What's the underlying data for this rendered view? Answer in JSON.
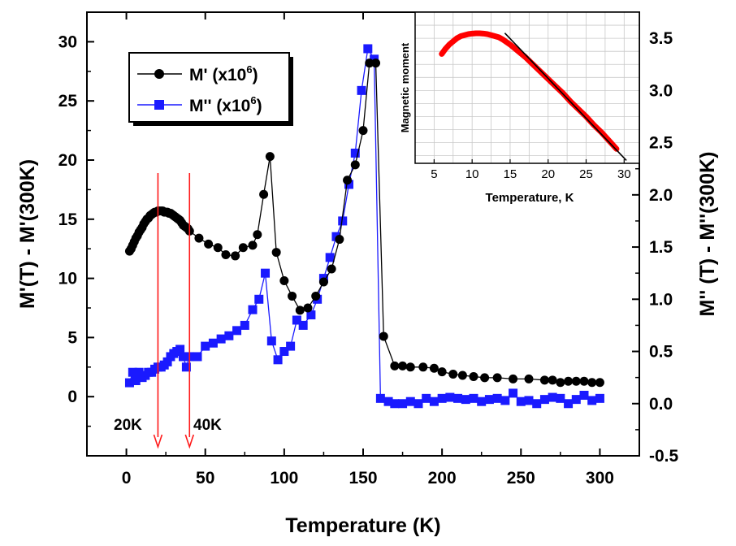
{
  "chart_data": {
    "type": "scatter",
    "xlabel": "Temperature (K)",
    "ylabel_left": "M'(T) - M'(300K)",
    "ylabel_right": "M'' (T) - M''(300K)",
    "xlim": [
      -25,
      325
    ],
    "ylim_left": [
      -5,
      32.5
    ],
    "ylim_right": [
      -0.5,
      3.75
    ],
    "x_ticks": [
      0,
      50,
      100,
      150,
      200,
      250,
      300
    ],
    "y_ticks_left": [
      0,
      5,
      10,
      15,
      20,
      25,
      30
    ],
    "y_ticks_right": [
      -0.5,
      0.0,
      0.5,
      1.0,
      1.5,
      2.0,
      2.5,
      3.0,
      3.5
    ],
    "legend": [
      {
        "label": "M' (x10",
        "sup": "6",
        "tail": ")",
        "color": "#000000",
        "marker": "circle"
      },
      {
        "label": "M'' (x10",
        "sup": "6",
        "tail": ")",
        "color": "#1a1aff",
        "marker": "square"
      }
    ],
    "annotations": [
      {
        "text": "20K",
        "x": 20
      },
      {
        "text": "40K",
        "x": 40
      }
    ],
    "arrow_color": "#ff1a1a",
    "series": [
      {
        "name": "M'",
        "axis": "left",
        "color": "#000000",
        "x": [
          2,
          3,
          4,
          5,
          6,
          7,
          8,
          9,
          10,
          11,
          12,
          13,
          14,
          15,
          16,
          17,
          18,
          19,
          20,
          21,
          22,
          23,
          24,
          25,
          26,
          27,
          28,
          29,
          30,
          31,
          32,
          33,
          34,
          35,
          36,
          37,
          38,
          39,
          40,
          46,
          52,
          58,
          63,
          69,
          74,
          80,
          83,
          87,
          91,
          95,
          100,
          105,
          110,
          115,
          120,
          125,
          130,
          135,
          140,
          145,
          150,
          154,
          158,
          163,
          170,
          175,
          180,
          188,
          195,
          200,
          207,
          213,
          220,
          227,
          235,
          245,
          255,
          265,
          270,
          275,
          280,
          285,
          290,
          295,
          300
        ],
        "y": [
          12.3,
          12.5,
          12.8,
          13.1,
          13.4,
          13.6,
          13.9,
          14.1,
          14.3,
          14.6,
          14.8,
          15.0,
          15.1,
          15.3,
          15.4,
          15.5,
          15.6,
          15.6,
          15.7,
          15.7,
          15.7,
          15.7,
          15.6,
          15.6,
          15.6,
          15.5,
          15.5,
          15.4,
          15.3,
          15.2,
          15.1,
          15.0,
          14.9,
          14.7,
          14.5,
          14.4,
          14.3,
          14.2,
          14.0,
          13.4,
          12.9,
          12.6,
          12.0,
          11.9,
          12.6,
          12.8,
          13.7,
          17.1,
          20.3,
          12.2,
          9.8,
          8.5,
          7.3,
          7.5,
          8.5,
          9.7,
          10.8,
          13.3,
          18.3,
          19.6,
          22.5,
          28.2,
          28.2,
          5.1,
          2.6,
          2.6,
          2.5,
          2.5,
          2.4,
          2.1,
          1.9,
          1.8,
          1.7,
          1.6,
          1.6,
          1.5,
          1.5,
          1.4,
          1.4,
          1.2,
          1.3,
          1.3,
          1.3,
          1.2,
          1.2
        ]
      },
      {
        "name": "M''",
        "axis": "right",
        "color": "#1a1aff",
        "x": [
          2,
          4,
          6,
          8,
          10,
          12,
          14,
          16,
          18,
          20,
          22,
          24,
          26,
          28,
          30,
          32,
          34,
          36,
          38,
          40,
          45,
          50,
          55,
          60,
          65,
          70,
          75,
          80,
          84,
          88,
          92,
          96,
          100,
          104,
          108,
          112,
          117,
          121,
          125,
          129,
          133,
          137,
          141,
          145,
          149,
          153,
          157,
          161,
          166,
          170,
          175,
          180,
          185,
          190,
          195,
          200,
          205,
          210,
          215,
          220,
          225,
          230,
          235,
          240,
          245,
          250,
          255,
          260,
          265,
          270,
          275,
          280,
          285,
          290,
          295,
          300
        ],
        "y": [
          0.2,
          0.3,
          0.22,
          0.3,
          0.25,
          0.27,
          0.3,
          0.3,
          0.33,
          0.35,
          0.35,
          0.37,
          0.4,
          0.45,
          0.48,
          0.5,
          0.52,
          0.45,
          0.35,
          0.45,
          0.45,
          0.55,
          0.58,
          0.62,
          0.65,
          0.7,
          0.75,
          0.9,
          1.0,
          1.25,
          0.6,
          0.42,
          0.5,
          0.55,
          0.8,
          0.75,
          0.85,
          1.0,
          1.2,
          1.4,
          1.6,
          1.75,
          2.1,
          2.4,
          3.0,
          3.4,
          3.3,
          0.05,
          0.02,
          0.0,
          0.0,
          0.02,
          0.0,
          0.05,
          0.02,
          0.05,
          0.06,
          0.05,
          0.04,
          0.05,
          0.02,
          0.04,
          0.05,
          0.03,
          0.1,
          0.02,
          0.03,
          0.0,
          0.04,
          0.06,
          0.05,
          0.0,
          0.04,
          0.08,
          0.03,
          0.05
        ]
      }
    ],
    "inset": {
      "type": "line",
      "xlabel": "Temperature, K",
      "ylabel": "Magnetic moment",
      "xlim": [
        2.5,
        32
      ],
      "x_ticks": [
        5,
        10,
        15,
        20,
        25,
        30
      ],
      "y_range_shared_with_right_axis": [
        2.25,
        3.6
      ],
      "curve_color": "#ff0000",
      "line_color": "#000000",
      "curve": {
        "x": [
          6,
          6.5,
          7,
          7.5,
          8,
          8.5,
          9,
          9.5,
          10,
          10.5,
          11,
          11.5,
          12,
          12.5,
          13,
          13.5,
          14,
          15,
          16,
          17,
          18,
          19,
          20,
          21,
          22,
          23,
          24,
          25,
          26,
          27,
          28,
          29
        ],
        "y": [
          3.35,
          3.4,
          3.44,
          3.47,
          3.5,
          3.52,
          3.53,
          3.54,
          3.545,
          3.548,
          3.548,
          3.545,
          3.54,
          3.53,
          3.52,
          3.51,
          3.49,
          3.44,
          3.38,
          3.32,
          3.25,
          3.18,
          3.11,
          3.04,
          2.97,
          2.89,
          2.82,
          2.75,
          2.67,
          2.6,
          2.52,
          2.44
        ]
      },
      "fit_line": {
        "x": [
          14.3,
          30.3
        ],
        "y": [
          3.55,
          2.33
        ]
      }
    }
  }
}
